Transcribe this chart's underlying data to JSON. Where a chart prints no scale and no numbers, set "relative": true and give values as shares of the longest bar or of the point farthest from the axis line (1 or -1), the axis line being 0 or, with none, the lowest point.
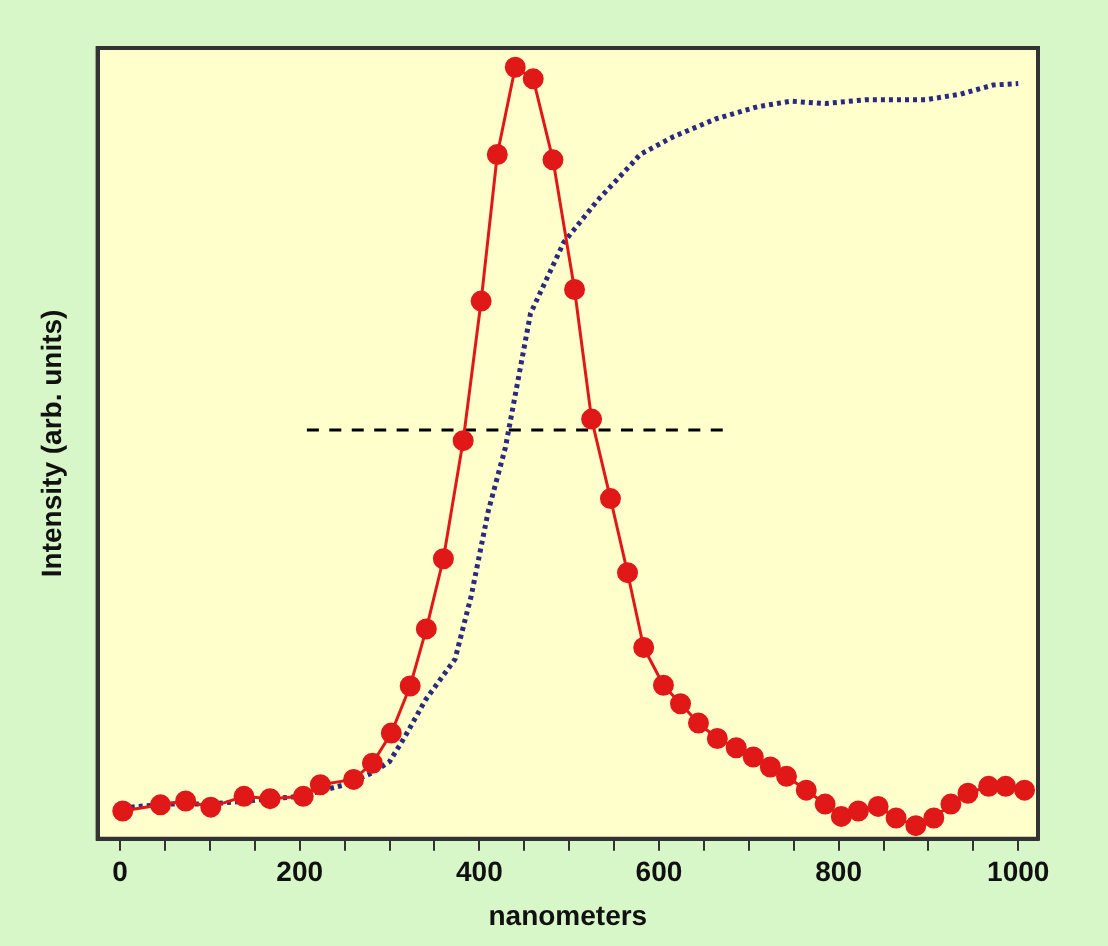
{
  "chart_data": {
    "type": "line",
    "xlabel": "nanometers",
    "ylabel": "Intensity (arb. units)",
    "relative": true,
    "tick_labels": "x",
    "grid": false,
    "legend": false,
    "xlim": [
      -25,
      1022
    ],
    "xticks": [
      0,
      {
        "value": 50,
        "label": null
      },
      {
        "value": 100,
        "label": null
      },
      {
        "value": 150,
        "label": null
      },
      200,
      {
        "value": 250,
        "label": null
      },
      {
        "value": 300,
        "label": null
      },
      {
        "value": 350,
        "label": null
      },
      400,
      {
        "value": 450,
        "label": null
      },
      {
        "value": 500,
        "label": null
      },
      {
        "value": 550,
        "label": null
      },
      600,
      {
        "value": 650,
        "label": null
      },
      {
        "value": 700,
        "label": null
      },
      {
        "value": 750,
        "label": null
      },
      800,
      {
        "value": 850,
        "label": null
      },
      {
        "value": 900,
        "label": null
      },
      {
        "value": 950,
        "label": null
      },
      1000
    ],
    "series": [
      {
        "color": "#e01818",
        "marker": "circle",
        "line_style": "solid",
        "x": [
          3,
          45,
          73,
          101,
          138,
          167,
          204,
          223,
          260,
          281,
          302,
          323,
          341,
          360,
          382,
          402,
          420,
          440,
          460,
          482,
          506,
          525,
          546,
          565,
          583,
          605,
          624,
          644,
          665,
          686,
          705,
          724,
          742,
          764,
          785,
          803,
          822,
          844,
          864,
          886,
          906,
          925,
          944,
          967,
          986,
          1007
        ],
        "values": [
          0.036,
          0.044,
          0.049,
          0.041,
          0.055,
          0.052,
          0.055,
          0.07,
          0.077,
          0.098,
          0.137,
          0.198,
          0.272,
          0.363,
          0.516,
          0.697,
          0.887,
          1.0,
          0.985,
          0.88,
          0.712,
          0.544,
          0.441,
          0.345,
          0.248,
          0.199,
          0.175,
          0.15,
          0.13,
          0.118,
          0.106,
          0.093,
          0.081,
          0.063,
          0.045,
          0.029,
          0.036,
          0.042,
          0.027,
          0.017,
          0.027,
          0.045,
          0.059,
          0.068,
          0.068,
          0.063
        ]
      },
      {
        "color": "#2a2a80",
        "marker": "none",
        "line_style": "dotted",
        "x": [
          3,
          50,
          100,
          150,
          200,
          250,
          280,
          300,
          317,
          340,
          373,
          391,
          410,
          429,
          457,
          494,
          532,
          569,
          579,
          616,
          663,
          710,
          747,
          785,
          831,
          897,
          935,
          972,
          1000
        ],
        "values": [
          0.04,
          0.045,
          0.045,
          0.05,
          0.055,
          0.07,
          0.085,
          0.1,
          0.132,
          0.18,
          0.233,
          0.315,
          0.425,
          0.507,
          0.681,
          0.773,
          0.828,
          0.874,
          0.887,
          0.91,
          0.933,
          0.949,
          0.956,
          0.953,
          0.958,
          0.958,
          0.965,
          0.977,
          0.979
        ]
      },
      {
        "color": "#000000",
        "marker": "none",
        "line_style": "dashed",
        "x": [
          208,
          671
        ],
        "values": [
          0.53,
          0.53
        ]
      }
    ]
  }
}
